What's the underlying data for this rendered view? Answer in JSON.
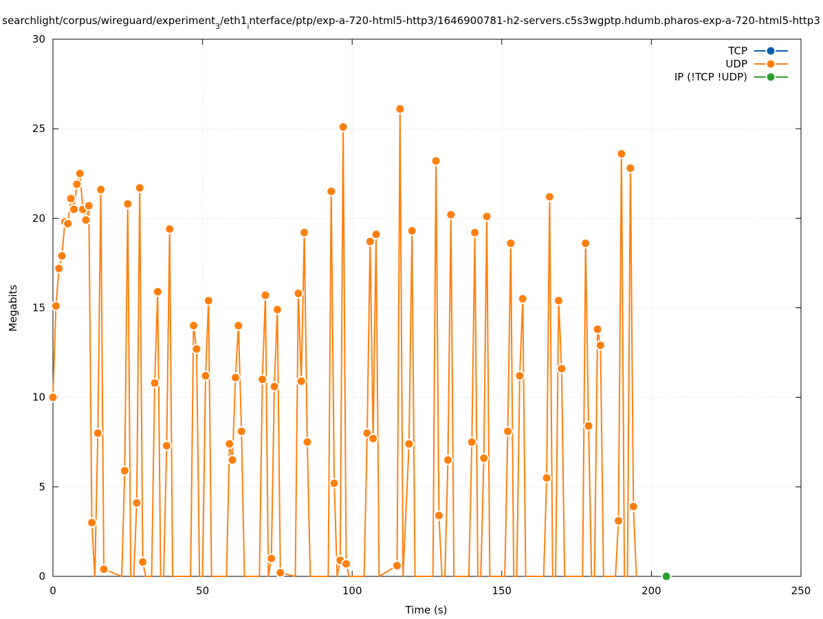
{
  "chart_data": {
    "type": "line",
    "title": "searchlight/corpus/wireguard/experiment_3/eth1_interface/ptp/exp-a-720-html5-http3/1646900781-h2-servers.c5s3wgptp.hdumb.pharos-exp-a-720-html5-http3",
    "title_parts": [
      {
        "text": "searchlight/corpus/wireguard/experiment",
        "sub": false
      },
      {
        "text": "3",
        "sub": true
      },
      {
        "text": "/eth1",
        "sub": false
      },
      {
        "text": "i",
        "sub": true
      },
      {
        "text": "nterface/ptp/exp-a-720-html5-http3/1646900781-h2-servers.c5s3wgptp.hdumb.pharos-exp-a-720-html5-http3",
        "sub": false
      }
    ],
    "xlabel": "Time (s)",
    "ylabel": "Megabits",
    "xlim": [
      0,
      250
    ],
    "ylim": [
      0,
      30
    ],
    "x_ticks": [
      0,
      50,
      100,
      150,
      200,
      250
    ],
    "y_ticks": [
      0,
      5,
      10,
      15,
      20,
      25,
      30
    ],
    "grid": true,
    "legend_position": "top-right",
    "series": [
      {
        "name": "TCP",
        "color": "#0060ad",
        "points": []
      },
      {
        "name": "UDP",
        "color": "#ff7f0e",
        "points": [
          [
            0,
            10.0
          ],
          [
            1,
            15.1
          ],
          [
            2,
            17.2
          ],
          [
            3,
            17.9
          ],
          [
            4,
            19.8
          ],
          [
            5,
            19.7
          ],
          [
            6,
            21.1
          ],
          [
            7,
            20.5
          ],
          [
            8,
            21.9
          ],
          [
            9,
            22.5
          ],
          [
            10,
            20.5
          ],
          [
            11,
            19.9
          ],
          [
            12,
            20.7
          ],
          [
            13,
            3.0
          ],
          [
            14,
            0
          ],
          [
            15,
            8.0
          ],
          [
            16,
            21.6
          ],
          [
            17,
            0.4
          ],
          [
            23,
            0
          ],
          [
            24,
            5.9
          ],
          [
            25,
            20.8
          ],
          [
            26,
            0
          ],
          [
            27,
            0
          ],
          [
            28,
            4.1
          ],
          [
            29,
            21.7
          ],
          [
            30,
            0.8
          ],
          [
            31,
            0
          ],
          [
            33,
            0
          ],
          [
            34,
            10.8
          ],
          [
            35,
            15.9
          ],
          [
            36,
            0
          ],
          [
            37,
            0
          ],
          [
            38,
            7.3
          ],
          [
            39,
            19.4
          ],
          [
            40,
            0
          ],
          [
            46,
            0
          ],
          [
            47,
            14.0
          ],
          [
            48,
            12.7
          ],
          [
            49,
            0
          ],
          [
            50,
            0
          ],
          [
            51,
            11.2
          ],
          [
            52,
            15.4
          ],
          [
            53,
            0
          ],
          [
            58,
            0
          ],
          [
            59,
            7.4
          ],
          [
            60,
            6.5
          ],
          [
            61,
            11.1
          ],
          [
            62,
            14.0
          ],
          [
            63,
            8.1
          ],
          [
            64,
            0
          ],
          [
            69,
            0
          ],
          [
            70,
            11.0
          ],
          [
            71,
            15.7
          ],
          [
            72,
            0
          ],
          [
            73,
            1.0
          ],
          [
            74,
            10.6
          ],
          [
            75,
            14.9
          ],
          [
            76,
            0.2
          ],
          [
            81,
            0
          ],
          [
            82,
            15.8
          ],
          [
            83,
            10.9
          ],
          [
            84,
            19.2
          ],
          [
            85,
            7.5
          ],
          [
            86,
            0
          ],
          [
            92,
            0
          ],
          [
            93,
            21.5
          ],
          [
            94,
            5.2
          ],
          [
            95,
            0
          ],
          [
            96,
            0.9
          ],
          [
            97,
            25.1
          ],
          [
            98,
            0.7
          ],
          [
            99,
            0
          ],
          [
            104,
            0
          ],
          [
            105,
            8.0
          ],
          [
            106,
            18.7
          ],
          [
            107,
            7.7
          ],
          [
            108,
            19.1
          ],
          [
            109,
            0
          ],
          [
            115,
            0.6
          ],
          [
            116,
            26.1
          ],
          [
            117,
            0
          ],
          [
            119,
            7.4
          ],
          [
            120,
            19.3
          ],
          [
            121,
            0
          ],
          [
            127,
            0
          ],
          [
            128,
            23.2
          ],
          [
            129,
            3.4
          ],
          [
            130,
            0
          ],
          [
            131,
            0
          ],
          [
            132,
            6.5
          ],
          [
            133,
            20.2
          ],
          [
            134,
            0
          ],
          [
            139,
            0
          ],
          [
            140,
            7.5
          ],
          [
            141,
            19.2
          ],
          [
            142,
            0
          ],
          [
            143,
            0
          ],
          [
            144,
            6.6
          ],
          [
            145,
            20.1
          ],
          [
            146,
            0
          ],
          [
            151,
            0
          ],
          [
            152,
            8.1
          ],
          [
            153,
            18.6
          ],
          [
            154,
            0
          ],
          [
            155,
            0
          ],
          [
            156,
            11.2
          ],
          [
            157,
            15.5
          ],
          [
            158,
            0
          ],
          [
            164,
            0
          ],
          [
            165,
            5.5
          ],
          [
            166,
            21.2
          ],
          [
            167,
            0
          ],
          [
            168,
            0
          ],
          [
            169,
            15.4
          ],
          [
            170,
            11.6
          ],
          [
            171,
            0
          ],
          [
            177,
            0
          ],
          [
            178,
            18.6
          ],
          [
            179,
            8.4
          ],
          [
            180,
            0
          ],
          [
            181,
            0
          ],
          [
            182,
            13.8
          ],
          [
            183,
            12.9
          ],
          [
            184,
            0
          ],
          [
            188,
            0
          ],
          [
            189,
            3.1
          ],
          [
            190,
            23.6
          ],
          [
            191,
            0
          ],
          [
            192,
            0
          ],
          [
            193,
            22.8
          ],
          [
            194,
            3.9
          ],
          [
            195,
            0
          ]
        ]
      },
      {
        "name": "IP (!TCP  !UDP)",
        "color": "#2ca02c",
        "points": [
          [
            205,
            0
          ]
        ]
      }
    ]
  }
}
